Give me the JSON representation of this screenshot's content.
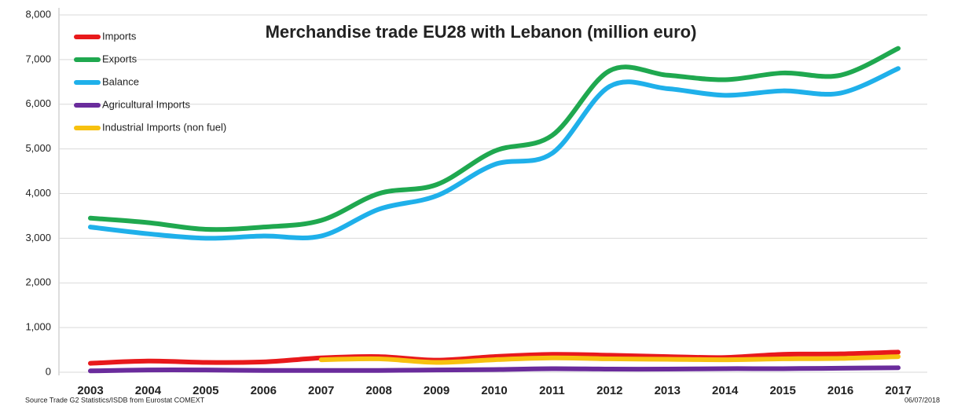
{
  "chart_data": {
    "type": "line",
    "title": "Merchandise trade EU28 with Lebanon (million euro)",
    "annotations": [
      "Source Trade G2 Statistics/ISDB from Eurostat COMEXT",
      "06/07/2018"
    ],
    "categories": [
      "2003",
      "2004",
      "2005",
      "2006",
      "2007",
      "2008",
      "2009",
      "2010",
      "2011",
      "2012",
      "2013",
      "2014",
      "2015",
      "2016",
      "2017"
    ],
    "series": [
      {
        "name": "Imports",
        "color": "#e8191b",
        "values": [
          200,
          250,
          220,
          230,
          320,
          350,
          270,
          350,
          400,
          380,
          350,
          330,
          400,
          410,
          450
        ]
      },
      {
        "name": "Exports",
        "color": "#1fa84f",
        "values": [
          3450,
          3350,
          3200,
          3250,
          3400,
          4000,
          4200,
          4950,
          5300,
          6750,
          6650,
          6550,
          6700,
          6650,
          7250
        ]
      },
      {
        "name": "Balance",
        "color": "#1fb0ea",
        "values": [
          3250,
          3100,
          3000,
          3050,
          3050,
          3650,
          3950,
          4650,
          4900,
          6400,
          6350,
          6200,
          6300,
          6250,
          6800
        ]
      },
      {
        "name": "Agricultural Imports",
        "color": "#6a2c9c",
        "values": [
          30,
          50,
          50,
          40,
          40,
          40,
          50,
          60,
          80,
          70,
          70,
          80,
          80,
          90,
          100
        ]
      },
      {
        "name": "Industrial Imports (non fuel)",
        "color": "#f7c10f",
        "values": [
          null,
          null,
          null,
          null,
          280,
          300,
          220,
          280,
          320,
          300,
          290,
          280,
          300,
          310,
          350
        ]
      }
    ],
    "ylim": [
      0,
      8000
    ],
    "yticks": [
      0,
      {
        "value": 1000,
        "label": "1,000"
      },
      {
        "value": 2000,
        "label": "2,000"
      },
      {
        "value": 3000,
        "label": "3,000"
      },
      {
        "value": 4000,
        "label": "4,000"
      },
      {
        "value": 5000,
        "label": "5,000"
      },
      {
        "value": 6000,
        "label": "6,000"
      },
      {
        "value": 7000,
        "label": "7,000"
      },
      {
        "value": 8000,
        "label": "8,000"
      }
    ],
    "grid": true,
    "legend": "upper left"
  }
}
